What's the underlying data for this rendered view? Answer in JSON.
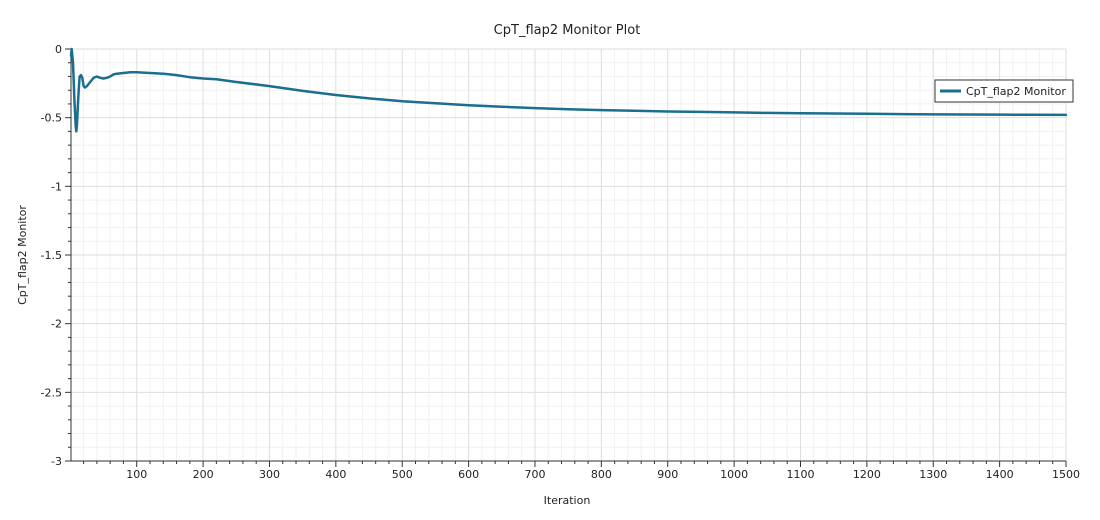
{
  "chart_data": {
    "type": "line",
    "title": "CpT_flap2 Monitor Plot",
    "xlabel": "Iteration",
    "ylabel": "CpT_flap2 Monitor",
    "xlim": [
      1,
      1500
    ],
    "ylim": [
      -3,
      0
    ],
    "x_ticks": [
      100,
      200,
      300,
      400,
      500,
      600,
      700,
      800,
      900,
      1000,
      1100,
      1200,
      1300,
      1400,
      1500
    ],
    "x_tick_labels": [
      "100",
      "200",
      "300",
      "400",
      "500",
      "600",
      "700",
      "800",
      "900",
      "1000",
      "1100",
      "1200",
      "1300",
      "1400",
      "1500"
    ],
    "y_ticks": [
      0,
      -0.5,
      -1,
      -1.5,
      -2,
      -2.5,
      -3
    ],
    "y_tick_labels": [
      "0",
      "-0.5",
      "-1",
      "-1.5",
      "-2",
      "-2.5",
      "-3"
    ],
    "grid": true,
    "legend_position": "top-right",
    "series": [
      {
        "name": "CpT_flap2 Monitor",
        "color": "#1a6e8e",
        "x": [
          1,
          2,
          4,
          6,
          8,
          9,
          10,
          12,
          14,
          16,
          18,
          20,
          22,
          25,
          30,
          35,
          40,
          45,
          50,
          55,
          60,
          65,
          70,
          80,
          90,
          100,
          120,
          140,
          150,
          160,
          180,
          200,
          220,
          250,
          300,
          350,
          400,
          450,
          500,
          550,
          600,
          650,
          700,
          750,
          800,
          850,
          900,
          950,
          1000,
          1050,
          1100,
          1150,
          1200,
          1250,
          1300,
          1350,
          1400,
          1450,
          1500
        ],
        "y": [
          -0.05,
          0.0,
          -0.1,
          -0.35,
          -0.55,
          -0.6,
          -0.55,
          -0.35,
          -0.2,
          -0.19,
          -0.21,
          -0.27,
          -0.28,
          -0.27,
          -0.24,
          -0.21,
          -0.2,
          -0.21,
          -0.215,
          -0.21,
          -0.2,
          -0.185,
          -0.18,
          -0.175,
          -0.17,
          -0.17,
          -0.175,
          -0.18,
          -0.185,
          -0.19,
          -0.205,
          -0.215,
          -0.22,
          -0.24,
          -0.27,
          -0.305,
          -0.335,
          -0.36,
          -0.38,
          -0.395,
          -0.41,
          -0.42,
          -0.43,
          -0.438,
          -0.445,
          -0.45,
          -0.455,
          -0.458,
          -0.462,
          -0.465,
          -0.468,
          -0.47,
          -0.472,
          -0.474,
          -0.476,
          -0.477,
          -0.478,
          -0.479,
          -0.48
        ]
      }
    ]
  }
}
